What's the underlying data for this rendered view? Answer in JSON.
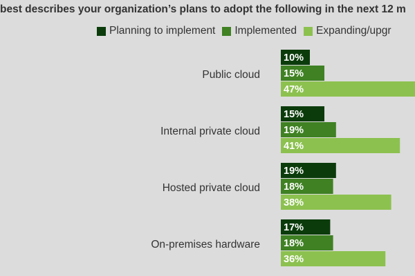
{
  "chart_data": {
    "type": "bar",
    "orientation": "horizontal",
    "title": "best describes your organization’s plans to adopt the following in the next 12 m",
    "categories": [
      "Public cloud",
      "Internal private cloud",
      "Hosted private cloud",
      "On-premises hardware"
    ],
    "series": [
      {
        "name": "Planning to implement",
        "values": [
          10,
          15,
          19,
          17
        ],
        "labels": [
          "10%",
          "15%",
          "19%",
          "17%"
        ],
        "color": "#0b3b0b"
      },
      {
        "name": "Implemented",
        "values": [
          15,
          19,
          18,
          18
        ],
        "labels": [
          "15%",
          "19%",
          "18%",
          "18%"
        ],
        "color": "#3f8123"
      },
      {
        "name": "Expanding/upgr",
        "values": [
          47,
          41,
          38,
          36
        ],
        "labels": [
          "47%",
          "41%",
          "38%",
          "36%"
        ],
        "color": "#8cc14f"
      }
    ],
    "legend_position": "top",
    "grid": false
  }
}
